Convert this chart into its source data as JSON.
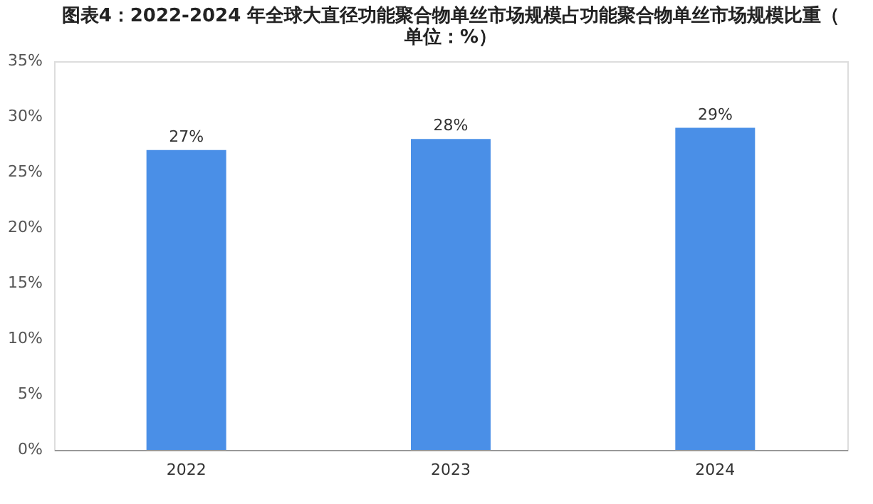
{
  "chart_data": {
    "type": "bar",
    "title": "图表4：2022-2024 年全球大直径功能聚合物单丝市场规模占功能聚合物单丝市场规模比重（单位：%）",
    "categories": [
      "2022",
      "2023",
      "2024"
    ],
    "values": [
      27,
      28,
      29
    ],
    "value_labels": [
      "27%",
      "28%",
      "29%"
    ],
    "color": "#4a8fe7",
    "ylim": [
      0,
      35
    ],
    "yticks": [
      {
        "value": 0,
        "label": "0%"
      },
      {
        "value": 5,
        "label": "5%"
      },
      {
        "value": 10,
        "label": "10%"
      },
      {
        "value": 15,
        "label": "15%"
      },
      {
        "value": 20,
        "label": "20%"
      },
      {
        "value": 25,
        "label": "25%"
      },
      {
        "value": 30,
        "label": "30%"
      },
      {
        "value": 35,
        "label": "35%"
      }
    ],
    "grid": false
  }
}
